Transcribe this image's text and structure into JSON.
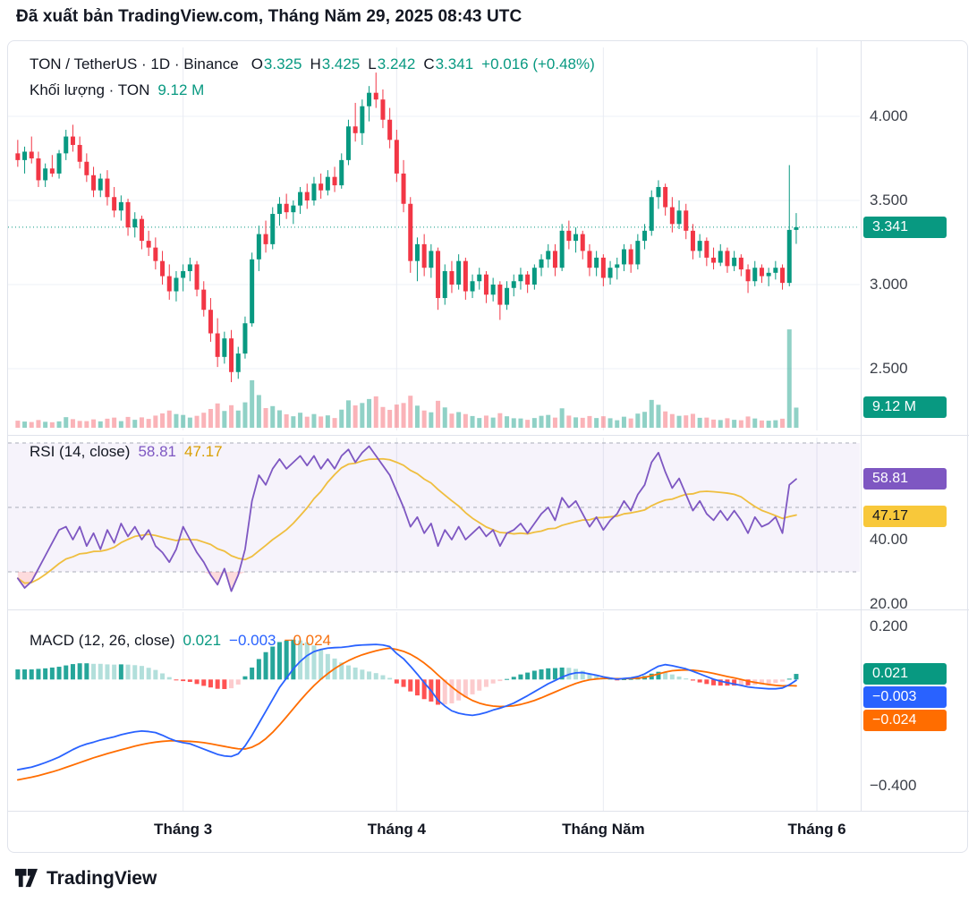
{
  "header": {
    "published_line": "Đã xuất bản TradingView.com, Tháng Năm 29, 2025 08:43 UTC"
  },
  "symbol_legend": {
    "title": "TON / TetherUS · 1D · Binance",
    "o_label": "O",
    "o": "3.325",
    "h_label": "H",
    "h": "3.425",
    "l_label": "L",
    "l": "3.242",
    "c_label": "C",
    "c": "3.341",
    "change": "+0.016 (+0.48%)"
  },
  "volume_legend": {
    "label": "Khối lượng · TON",
    "value": "9.12 M"
  },
  "rsi_legend": {
    "label": "RSI (14, close)",
    "value": "58.81",
    "ma_value": "47.17"
  },
  "macd_legend": {
    "label": "MACD (12, 26, close)",
    "hist": "0.021",
    "macd": "−0.003",
    "signal": "−0.024"
  },
  "axis": {
    "price_ticks": [
      {
        "label": "4.000",
        "value": 4.0
      },
      {
        "label": "3.500",
        "value": 3.5
      },
      {
        "label": "3.000",
        "value": 3.0
      },
      {
        "label": "2.500",
        "value": 2.5
      }
    ],
    "price_badge": {
      "label": "3.341",
      "value": 3.341,
      "color": "#089981"
    },
    "volume_badge": {
      "label": "9.12 M",
      "color": "#089981"
    },
    "rsi_ticks": [
      {
        "label": "40.00",
        "value": 40
      },
      {
        "label": "20.00",
        "value": 20
      }
    ],
    "rsi_badges": [
      {
        "label": "58.81",
        "value": 58.81,
        "color": "#7E57C2"
      },
      {
        "label": "47.17",
        "value": 47.17,
        "color": "#F8C83A",
        "text_color": "#131722"
      }
    ],
    "macd_ticks": [
      {
        "label": "0.200",
        "value": 0.2
      },
      {
        "label": "−0.400",
        "value": -0.4
      }
    ],
    "macd_badges": [
      {
        "label": "0.021",
        "value": 0.021,
        "color": "#089981"
      },
      {
        "label": "−0.003",
        "value": -0.003,
        "color": "#2962FF"
      },
      {
        "label": "−0.024",
        "value": -0.024,
        "color": "#FF6D00"
      }
    ]
  },
  "x_axis": {
    "month_ticks": [
      {
        "label": "Tháng 3",
        "index": 24
      },
      {
        "label": "Tháng 4",
        "index": 55
      },
      {
        "label": "Tháng Năm",
        "index": 85
      },
      {
        "label": "Tháng 6",
        "index": 116
      }
    ]
  },
  "footer": {
    "brand": "TradingView"
  },
  "colors": {
    "up": "#089981",
    "down": "#F23645",
    "rsi": "#7E57C2",
    "rsi_ma": "#EFBE3F",
    "macd": "#2962FF",
    "signal": "#FF6D00",
    "hist_up": "#26A69A",
    "hist_up_weak": "#B2DFDB",
    "hist_down": "#FF5252",
    "hist_down_weak": "#FCCBCD"
  },
  "chart_data": [
    {
      "type": "candlestick",
      "title": "TON / TetherUS · 1D · Binance",
      "timeframe": "1D",
      "exchange": "Binance",
      "last": {
        "open": 3.325,
        "high": 3.425,
        "low": 3.242,
        "close": 3.341,
        "change": 0.016,
        "change_pct": 0.48,
        "volume_millions": 9.12
      },
      "y_axis_ticks": [
        4.0,
        3.5,
        3.0,
        2.5
      ],
      "x_axis_months": [
        "Tháng 3",
        "Tháng 4",
        "Tháng Năm",
        "Tháng 6"
      ],
      "ohlc": [
        [
          3.78,
          3.86,
          3.7,
          3.74
        ],
        [
          3.74,
          3.82,
          3.66,
          3.79
        ],
        [
          3.79,
          3.88,
          3.72,
          3.75
        ],
        [
          3.75,
          3.79,
          3.58,
          3.62
        ],
        [
          3.62,
          3.72,
          3.58,
          3.69
        ],
        [
          3.69,
          3.77,
          3.64,
          3.66
        ],
        [
          3.66,
          3.8,
          3.63,
          3.78
        ],
        [
          3.78,
          3.92,
          3.74,
          3.88
        ],
        [
          3.88,
          3.95,
          3.79,
          3.83
        ],
        [
          3.83,
          3.88,
          3.69,
          3.73
        ],
        [
          3.73,
          3.78,
          3.61,
          3.65
        ],
        [
          3.65,
          3.7,
          3.52,
          3.56
        ],
        [
          3.56,
          3.66,
          3.52,
          3.63
        ],
        [
          3.63,
          3.68,
          3.47,
          3.52
        ],
        [
          3.52,
          3.58,
          3.4,
          3.44
        ],
        [
          3.44,
          3.53,
          3.38,
          3.49
        ],
        [
          3.49,
          3.51,
          3.29,
          3.34
        ],
        [
          3.34,
          3.43,
          3.28,
          3.39
        ],
        [
          3.39,
          3.41,
          3.21,
          3.26
        ],
        [
          3.26,
          3.32,
          3.17,
          3.22
        ],
        [
          3.22,
          3.28,
          3.09,
          3.14
        ],
        [
          3.14,
          3.2,
          3.0,
          3.05
        ],
        [
          3.05,
          3.12,
          2.91,
          2.96
        ],
        [
          2.96,
          3.08,
          2.9,
          3.04
        ],
        [
          3.04,
          3.12,
          2.96,
          3.08
        ],
        [
          3.08,
          3.16,
          3.02,
          3.12
        ],
        [
          3.12,
          3.14,
          2.93,
          2.97
        ],
        [
          2.97,
          3.02,
          2.81,
          2.85
        ],
        [
          2.85,
          2.92,
          2.66,
          2.71
        ],
        [
          2.71,
          2.8,
          2.51,
          2.57
        ],
        [
          2.57,
          2.72,
          2.53,
          2.68
        ],
        [
          2.68,
          2.73,
          2.42,
          2.48
        ],
        [
          2.48,
          2.63,
          2.44,
          2.59
        ],
        [
          2.59,
          2.81,
          2.56,
          2.77
        ],
        [
          2.77,
          3.19,
          2.75,
          3.15
        ],
        [
          3.15,
          3.35,
          3.08,
          3.3
        ],
        [
          3.3,
          3.38,
          3.19,
          3.24
        ],
        [
          3.24,
          3.46,
          3.21,
          3.42
        ],
        [
          3.42,
          3.52,
          3.35,
          3.48
        ],
        [
          3.48,
          3.54,
          3.39,
          3.43
        ],
        [
          3.43,
          3.5,
          3.36,
          3.47
        ],
        [
          3.47,
          3.58,
          3.42,
          3.55
        ],
        [
          3.55,
          3.6,
          3.45,
          3.5
        ],
        [
          3.5,
          3.64,
          3.47,
          3.6
        ],
        [
          3.6,
          3.66,
          3.51,
          3.56
        ],
        [
          3.56,
          3.68,
          3.53,
          3.64
        ],
        [
          3.64,
          3.7,
          3.55,
          3.59
        ],
        [
          3.59,
          3.78,
          3.57,
          3.74
        ],
        [
          3.74,
          3.98,
          3.71,
          3.94
        ],
        [
          3.94,
          4.08,
          3.85,
          3.9
        ],
        [
          3.9,
          4.1,
          3.83,
          4.06
        ],
        [
          4.06,
          4.18,
          3.97,
          4.14
        ],
        [
          4.14,
          4.26,
          4.05,
          4.1
        ],
        [
          4.1,
          4.16,
          3.93,
          3.98
        ],
        [
          3.98,
          4.05,
          3.81,
          3.86
        ],
        [
          3.86,
          3.92,
          3.61,
          3.66
        ],
        [
          3.66,
          3.74,
          3.43,
          3.48
        ],
        [
          3.48,
          3.52,
          3.07,
          3.14
        ],
        [
          3.14,
          3.28,
          3.02,
          3.24
        ],
        [
          3.24,
          3.3,
          3.05,
          3.1
        ],
        [
          3.1,
          3.24,
          3.04,
          3.2
        ],
        [
          3.2,
          3.22,
          2.85,
          2.92
        ],
        [
          2.92,
          3.12,
          2.88,
          3.08
        ],
        [
          3.08,
          3.14,
          2.95,
          3.0
        ],
        [
          3.0,
          3.18,
          2.97,
          3.14
        ],
        [
          3.14,
          3.16,
          2.91,
          2.96
        ],
        [
          2.96,
          3.06,
          2.92,
          3.02
        ],
        [
          3.02,
          3.1,
          2.97,
          3.06
        ],
        [
          3.06,
          3.08,
          2.89,
          2.94
        ],
        [
          2.94,
          3.04,
          2.9,
          3.0
        ],
        [
          3.0,
          3.02,
          2.79,
          2.88
        ],
        [
          2.88,
          3.02,
          2.85,
          2.98
        ],
        [
          2.98,
          3.06,
          2.93,
          3.02
        ],
        [
          3.02,
          3.1,
          2.97,
          3.06
        ],
        [
          3.06,
          3.08,
          2.95,
          3.0
        ],
        [
          3.0,
          3.12,
          2.97,
          3.1
        ],
        [
          3.1,
          3.18,
          3.05,
          3.15
        ],
        [
          3.15,
          3.24,
          3.1,
          3.2
        ],
        [
          3.2,
          3.24,
          3.05,
          3.1
        ],
        [
          3.1,
          3.36,
          3.08,
          3.32
        ],
        [
          3.32,
          3.38,
          3.21,
          3.26
        ],
        [
          3.26,
          3.34,
          3.19,
          3.3
        ],
        [
          3.3,
          3.32,
          3.15,
          3.2
        ],
        [
          3.2,
          3.24,
          3.05,
          3.1
        ],
        [
          3.1,
          3.2,
          3.05,
          3.16
        ],
        [
          3.16,
          3.18,
          2.99,
          3.04
        ],
        [
          3.04,
          3.14,
          3.0,
          3.1
        ],
        [
          3.1,
          3.16,
          3.03,
          3.12
        ],
        [
          3.12,
          3.24,
          3.08,
          3.21
        ],
        [
          3.21,
          3.24,
          3.07,
          3.12
        ],
        [
          3.12,
          3.3,
          3.09,
          3.26
        ],
        [
          3.26,
          3.36,
          3.21,
          3.32
        ],
        [
          3.32,
          3.56,
          3.29,
          3.52
        ],
        [
          3.52,
          3.62,
          3.45,
          3.58
        ],
        [
          3.58,
          3.6,
          3.41,
          3.46
        ],
        [
          3.46,
          3.52,
          3.31,
          3.36
        ],
        [
          3.36,
          3.5,
          3.33,
          3.44
        ],
        [
          3.44,
          3.48,
          3.27,
          3.32
        ],
        [
          3.32,
          3.36,
          3.15,
          3.2
        ],
        [
          3.2,
          3.3,
          3.16,
          3.26
        ],
        [
          3.26,
          3.28,
          3.11,
          3.16
        ],
        [
          3.16,
          3.22,
          3.09,
          3.13
        ],
        [
          3.13,
          3.24,
          3.11,
          3.2
        ],
        [
          3.2,
          3.22,
          3.07,
          3.11
        ],
        [
          3.11,
          3.2,
          3.08,
          3.16
        ],
        [
          3.16,
          3.18,
          3.05,
          3.09
        ],
        [
          3.09,
          3.12,
          2.95,
          3.02
        ],
        [
          3.02,
          3.14,
          2.99,
          3.1
        ],
        [
          3.1,
          3.12,
          3.01,
          3.05
        ],
        [
          3.05,
          3.1,
          2.99,
          3.07
        ],
        [
          3.07,
          3.14,
          3.03,
          3.1
        ],
        [
          3.1,
          3.12,
          2.97,
          3.01
        ],
        [
          3.01,
          3.71,
          2.99,
          3.325
        ],
        [
          3.325,
          3.425,
          3.242,
          3.341
        ]
      ],
      "volumes_millions": [
        3.2,
        2.8,
        2.6,
        3.5,
        2.7,
        2.5,
        2.9,
        4.8,
        3.9,
        3.1,
        3.0,
        3.8,
        2.9,
        4.1,
        4.6,
        3.0,
        4.9,
        3.6,
        4.7,
        4.0,
        5.5,
        6.5,
        7.8,
        6.2,
        5.8,
        4.6,
        5.4,
        6.8,
        8.5,
        11.0,
        7.6,
        10.2,
        7.8,
        11.5,
        21.5,
        14.8,
        8.9,
        9.8,
        7.9,
        6.1,
        5.2,
        6.8,
        5.0,
        6.2,
        5.1,
        5.6,
        4.4,
        8.2,
        12.4,
        10.1,
        11.2,
        13.0,
        14.2,
        9.4,
        8.1,
        10.5,
        11.2,
        14.5,
        10.0,
        7.8,
        7.0,
        12.2,
        9.2,
        6.4,
        7.1,
        6.2,
        5.3,
        4.4,
        5.5,
        4.6,
        6.6,
        5.2,
        4.3,
        4.2,
        3.6,
        4.4,
        5.4,
        5.8,
        4.6,
        8.8,
        5.5,
        4.7,
        4.5,
        5.3,
        4.4,
        5.2,
        4.3,
        3.4,
        5.0,
        4.2,
        6.4,
        7.2,
        12.6,
        10.4,
        7.4,
        6.2,
        5.4,
        5.6,
        6.3,
        4.5,
        4.6,
        3.7,
        3.5,
        4.3,
        3.6,
        3.4,
        5.1,
        4.2,
        3.3,
        3.2,
        3.4,
        4.1,
        44.5,
        9.12
      ]
    },
    {
      "type": "line",
      "title": "RSI (14, close)",
      "last": 58.81,
      "ma_period": 14,
      "ma_last": 47.17,
      "levels": [
        70,
        50,
        30
      ],
      "y_ticks": [
        40,
        20
      ],
      "values": [
        28,
        25,
        27,
        31,
        35,
        39,
        43,
        44,
        40,
        44,
        38,
        42,
        37,
        43,
        39,
        45,
        41,
        44,
        40,
        43,
        38,
        36,
        33,
        37,
        44,
        40,
        36,
        33,
        29,
        26,
        31,
        24,
        29,
        37,
        52,
        60,
        57,
        62,
        65,
        62,
        64,
        66,
        63,
        66,
        62,
        65,
        62,
        66,
        68,
        64,
        67,
        69,
        66,
        63,
        60,
        55,
        50,
        44,
        47,
        42,
        45,
        38,
        43,
        40,
        44,
        40,
        42,
        44,
        41,
        43,
        38,
        42,
        43,
        45,
        42,
        45,
        48,
        50,
        46,
        53,
        50,
        52,
        48,
        44,
        47,
        43,
        46,
        48,
        52,
        49,
        54,
        57,
        64,
        67,
        61,
        56,
        59,
        54,
        49,
        52,
        48,
        46,
        49,
        46,
        49,
        46,
        42,
        47,
        44,
        45,
        47,
        42,
        57,
        58.81
      ]
    },
    {
      "type": "bar",
      "title": "MACD (12, 26, close)",
      "histogram_last": 0.021,
      "macd_last": -0.003,
      "signal_last": -0.024,
      "y_ticks": [
        0.2,
        -0.4
      ],
      "macd": [
        -0.34,
        -0.335,
        -0.33,
        -0.322,
        -0.313,
        -0.303,
        -0.292,
        -0.278,
        -0.264,
        -0.252,
        -0.243,
        -0.236,
        -0.228,
        -0.222,
        -0.216,
        -0.208,
        -0.202,
        -0.197,
        -0.194,
        -0.196,
        -0.2,
        -0.21,
        -0.222,
        -0.232,
        -0.238,
        -0.242,
        -0.252,
        -0.262,
        -0.272,
        -0.282,
        -0.288,
        -0.29,
        -0.28,
        -0.25,
        -0.21,
        -0.165,
        -0.12,
        -0.075,
        -0.03,
        0.005,
        0.04,
        0.068,
        0.09,
        0.105,
        0.113,
        0.118,
        0.12,
        0.121,
        0.124,
        0.128,
        0.13,
        0.131,
        0.132,
        0.13,
        0.124,
        0.098,
        0.078,
        0.05,
        0.02,
        -0.012,
        -0.042,
        -0.078,
        -0.1,
        -0.118,
        -0.127,
        -0.132,
        -0.135,
        -0.131,
        -0.124,
        -0.115,
        -0.108,
        -0.099,
        -0.089,
        -0.075,
        -0.061,
        -0.046,
        -0.031,
        -0.016,
        -0.004,
        0.009,
        0.019,
        0.025,
        0.026,
        0.021,
        0.016,
        0.01,
        0.005,
        0.001,
        0.004,
        0.006,
        0.011,
        0.021,
        0.036,
        0.05,
        0.056,
        0.052,
        0.046,
        0.04,
        0.031,
        0.021,
        0.011,
        0.001,
        -0.006,
        -0.012,
        -0.017,
        -0.022,
        -0.028,
        -0.031,
        -0.033,
        -0.035,
        -0.035,
        -0.032,
        -0.02,
        -0.003
      ],
      "signal": [
        -0.378,
        -0.373,
        -0.368,
        -0.362,
        -0.355,
        -0.348,
        -0.34,
        -0.331,
        -0.322,
        -0.313,
        -0.304,
        -0.295,
        -0.287,
        -0.279,
        -0.272,
        -0.265,
        -0.258,
        -0.251,
        -0.245,
        -0.24,
        -0.236,
        -0.233,
        -0.231,
        -0.231,
        -0.232,
        -0.233,
        -0.235,
        -0.238,
        -0.242,
        -0.247,
        -0.252,
        -0.257,
        -0.261,
        -0.262,
        -0.255,
        -0.242,
        -0.223,
        -0.199,
        -0.171,
        -0.141,
        -0.11,
        -0.079,
        -0.05,
        -0.023,
        0.001,
        0.022,
        0.041,
        0.057,
        0.071,
        0.083,
        0.093,
        0.101,
        0.108,
        0.114,
        0.118,
        0.113,
        0.106,
        0.095,
        0.08,
        0.062,
        0.041,
        0.017,
        -0.006,
        -0.028,
        -0.048,
        -0.065,
        -0.079,
        -0.089,
        -0.096,
        -0.1,
        -0.102,
        -0.101,
        -0.099,
        -0.094,
        -0.087,
        -0.079,
        -0.069,
        -0.058,
        -0.047,
        -0.036,
        -0.025,
        -0.015,
        -0.007,
        -0.001,
        0.002,
        0.004,
        0.004,
        0.003,
        0.003,
        0.004,
        0.005,
        0.008,
        0.014,
        0.021,
        0.028,
        0.033,
        0.035,
        0.036,
        0.035,
        0.032,
        0.028,
        0.023,
        0.017,
        0.011,
        0.006,
        0.0,
        -0.006,
        -0.011,
        -0.015,
        -0.019,
        -0.022,
        -0.024,
        -0.023,
        -0.024
      ]
    }
  ]
}
